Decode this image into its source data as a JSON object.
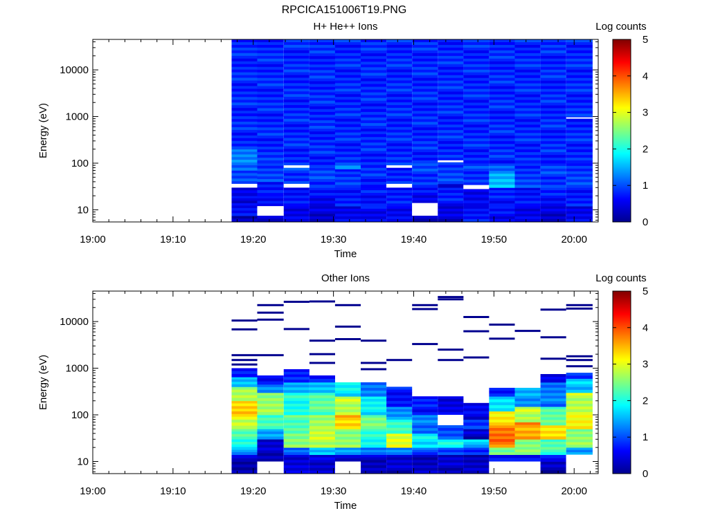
{
  "figure_title": "RPCICA151006T19.PNG",
  "chart_data": [
    {
      "type": "heatmap",
      "title": "H+ He++ Ions",
      "xlabel": "Time",
      "ylabel": "Energy (eV)",
      "x_ticks": [
        "19:00",
        "19:10",
        "19:20",
        "19:30",
        "19:40",
        "19:50",
        "20:00"
      ],
      "y_tick_labels": [
        "10",
        "100",
        "1000",
        "10000"
      ],
      "y_scale": "log",
      "ylim": [
        5.5,
        45000
      ],
      "xlim_minutes": [
        0,
        63
      ],
      "data_start_minutes": 17.3,
      "data_end_minutes": 62.3,
      "colorbar": {
        "label": "Log counts",
        "range": [
          0,
          5
        ],
        "ticks": [
          "0",
          "1",
          "2",
          "3",
          "4",
          "5"
        ]
      },
      "columns": [
        {
          "t0": 17.3,
          "t1": 20.5,
          "bins": [
            [
              5.6,
              7.5,
              0.3
            ],
            [
              7.5,
              14,
              0.7
            ],
            [
              14,
              20,
              0.5
            ],
            [
              20,
              30,
              0.4
            ],
            [
              30,
              36,
              -1
            ],
            [
              36,
              70,
              0.9
            ],
            [
              70,
              200,
              1.2
            ],
            [
              200,
              45000,
              0.8
            ]
          ]
        },
        {
          "t0": 20.5,
          "t1": 23.8,
          "bins": [
            [
              5.6,
              7.5,
              0.3
            ],
            [
              7.5,
              12,
              -1
            ],
            [
              12,
              20,
              0.6
            ],
            [
              20,
              40,
              0.7
            ],
            [
              40,
              100,
              0.9
            ],
            [
              100,
              45000,
              0.8
            ]
          ]
        },
        {
          "t0": 23.8,
          "t1": 27.0,
          "bins": [
            [
              5.6,
              12,
              0.5
            ],
            [
              12,
              30,
              0.7
            ],
            [
              30,
              36,
              -1
            ],
            [
              36,
              80,
              0.9
            ],
            [
              80,
              90,
              -1
            ],
            [
              90,
              45000,
              0.8
            ]
          ]
        },
        {
          "t0": 27.0,
          "t1": 30.2,
          "bins": [
            [
              5.6,
              12,
              0.4
            ],
            [
              12,
              30,
              0.6
            ],
            [
              30,
              80,
              0.9
            ],
            [
              80,
              45000,
              0.8
            ]
          ]
        },
        {
          "t0": 30.2,
          "t1": 33.4,
          "bins": [
            [
              5.6,
              12,
              0.5
            ],
            [
              12,
              30,
              0.7
            ],
            [
              30,
              75,
              0.9
            ],
            [
              75,
              90,
              1.4
            ],
            [
              90,
              45000,
              0.8
            ]
          ]
        },
        {
          "t0": 33.4,
          "t1": 36.6,
          "bins": [
            [
              5.6,
              12,
              0.6
            ],
            [
              12,
              30,
              0.7
            ],
            [
              30,
              80,
              0.8
            ],
            [
              80,
              45000,
              0.8
            ]
          ]
        },
        {
          "t0": 36.6,
          "t1": 39.8,
          "bins": [
            [
              5.6,
              12,
              0.5
            ],
            [
              12,
              30,
              0.7
            ],
            [
              30,
              36,
              -1
            ],
            [
              36,
              80,
              0.8
            ],
            [
              80,
              90,
              -1
            ],
            [
              90,
              45000,
              0.8
            ]
          ]
        },
        {
          "t0": 39.8,
          "t1": 43.0,
          "bins": [
            [
              5.6,
              7.5,
              0.4
            ],
            [
              7.5,
              14,
              -1
            ],
            [
              14,
              30,
              0.6
            ],
            [
              30,
              100,
              0.9
            ],
            [
              100,
              45000,
              0.8
            ]
          ]
        },
        {
          "t0": 43.0,
          "t1": 46.2,
          "bins": [
            [
              5.6,
              12,
              0.4
            ],
            [
              12,
              30,
              0.7
            ],
            [
              30,
              36,
              0.5
            ],
            [
              36,
              105,
              0.9
            ],
            [
              105,
              115,
              -1
            ],
            [
              115,
              45000,
              0.8
            ]
          ]
        },
        {
          "t0": 46.2,
          "t1": 49.4,
          "bins": [
            [
              5.6,
              12,
              0.7
            ],
            [
              12,
              28,
              0.6
            ],
            [
              28,
              34,
              -1
            ],
            [
              34,
              100,
              0.9
            ],
            [
              100,
              45000,
              0.8
            ]
          ]
        },
        {
          "t0": 49.4,
          "t1": 52.6,
          "bins": [
            [
              5.6,
              12,
              0.6
            ],
            [
              12,
              30,
              0.7
            ],
            [
              30,
              60,
              1.5
            ],
            [
              60,
              100,
              1.1
            ],
            [
              100,
              45000,
              0.8
            ]
          ]
        },
        {
          "t0": 52.6,
          "t1": 55.8,
          "bins": [
            [
              5.6,
              12,
              0.5
            ],
            [
              12,
              30,
              0.7
            ],
            [
              30,
              100,
              0.9
            ],
            [
              100,
              45000,
              0.8
            ]
          ]
        },
        {
          "t0": 55.8,
          "t1": 59.0,
          "bins": [
            [
              5.6,
              12,
              0.4
            ],
            [
              12,
              30,
              0.7
            ],
            [
              30,
              100,
              0.9
            ],
            [
              100,
              45000,
              0.8
            ]
          ]
        },
        {
          "t0": 59.0,
          "t1": 62.3,
          "bins": [
            [
              5.6,
              12,
              0.5
            ],
            [
              12,
              30,
              0.7
            ],
            [
              30,
              100,
              0.9
            ],
            [
              900,
              960,
              -1
            ],
            [
              100,
              45000,
              0.8
            ]
          ]
        }
      ]
    },
    {
      "type": "heatmap",
      "title": "Other Ions",
      "xlabel": "Time",
      "ylabel": "Energy (eV)",
      "x_ticks": [
        "19:00",
        "19:10",
        "19:20",
        "19:30",
        "19:40",
        "19:50",
        "20:00"
      ],
      "y_tick_labels": [
        "10",
        "100",
        "1000",
        "10000"
      ],
      "y_scale": "log",
      "ylim": [
        5.5,
        45000
      ],
      "xlim_minutes": [
        0,
        63
      ],
      "data_start_minutes": 17.3,
      "data_end_minutes": 62.3,
      "colorbar": {
        "label": "Log counts",
        "range": [
          0,
          5
        ],
        "ticks": [
          "0",
          "1",
          "2",
          "3",
          "4",
          "5"
        ]
      },
      "columns": [
        {
          "t0": 17.3,
          "t1": 20.5,
          "bins": [
            [
              5.6,
              10,
              0.2
            ],
            [
              10,
              14,
              0.5
            ],
            [
              14,
              18,
              1.2
            ],
            [
              18,
              30,
              1.9
            ],
            [
              30,
              50,
              2.2
            ],
            [
              50,
              80,
              2.8
            ],
            [
              80,
              200,
              3.3
            ],
            [
              200,
              400,
              2.7
            ],
            [
              400,
              650,
              1.6
            ],
            [
              650,
              1000,
              0.8
            ]
          ],
          "lines": [
            1200,
            1500,
            1900,
            6800,
            10500
          ]
        },
        {
          "t0": 20.5,
          "t1": 23.8,
          "bins": [
            [
              5.6,
              10,
              -1
            ],
            [
              10,
              30,
              0.3
            ],
            [
              30,
              50,
              1.4
            ],
            [
              50,
              100,
              2.2
            ],
            [
              100,
              300,
              2.6
            ],
            [
              300,
              450,
              1.4
            ],
            [
              450,
              700,
              0.7
            ]
          ],
          "lines": [
            1900,
            11000,
            15500,
            22500
          ]
        },
        {
          "t0": 23.8,
          "t1": 27.0,
          "bins": [
            [
              5.6,
              14,
              0.4
            ],
            [
              14,
              20,
              1.2
            ],
            [
              20,
              40,
              2.6
            ],
            [
              40,
              100,
              2.3
            ],
            [
              100,
              300,
              2.0
            ],
            [
              300,
              500,
              1.4
            ],
            [
              500,
              950,
              0.7
            ]
          ],
          "lines": [
            6900,
            26500
          ]
        },
        {
          "t0": 27.0,
          "t1": 30.2,
          "bins": [
            [
              5.6,
              14,
              0.4
            ],
            [
              14,
              20,
              1.5
            ],
            [
              20,
              50,
              2.8
            ],
            [
              50,
              100,
              2.6
            ],
            [
              100,
              300,
              2.3
            ],
            [
              300,
              500,
              1.6
            ],
            [
              500,
              700,
              0.8
            ]
          ],
          "lines": [
            1300,
            2000,
            3900,
            27000
          ]
        },
        {
          "t0": 30.2,
          "t1": 33.4,
          "bins": [
            [
              5.6,
              10,
              -1
            ],
            [
              10,
              14,
              0.4
            ],
            [
              14,
              20,
              1.5
            ],
            [
              20,
              50,
              2.6
            ],
            [
              50,
              100,
              3.4
            ],
            [
              100,
              250,
              2.8
            ],
            [
              250,
              500,
              1.8
            ]
          ],
          "lines": [
            4200,
            7800,
            22500
          ]
        },
        {
          "t0": 33.4,
          "t1": 36.6,
          "bins": [
            [
              5.6,
              14,
              0.3
            ],
            [
              14,
              20,
              1.1
            ],
            [
              20,
              50,
              2.0
            ],
            [
              50,
              100,
              2.4
            ],
            [
              100,
              250,
              1.8
            ],
            [
              250,
              500,
              1.2
            ]
          ],
          "lines": [
            950,
            1300,
            3900
          ]
        },
        {
          "t0": 36.6,
          "t1": 39.8,
          "bins": [
            [
              5.6,
              14,
              0.3
            ],
            [
              14,
              20,
              1.3
            ],
            [
              20,
              40,
              3.0
            ],
            [
              40,
              80,
              2.2
            ],
            [
              80,
              150,
              1.4
            ],
            [
              150,
              400,
              0.7
            ]
          ],
          "lines": [
            1500
          ]
        },
        {
          "t0": 39.8,
          "t1": 43.0,
          "bins": [
            [
              5.6,
              14,
              0.3
            ],
            [
              14,
              20,
              1.0
            ],
            [
              20,
              40,
              1.8
            ],
            [
              40,
              100,
              1.2
            ],
            [
              100,
              250,
              0.7
            ]
          ],
          "lines": [
            3300,
            18500,
            22500
          ]
        },
        {
          "t0": 43.0,
          "t1": 46.2,
          "bins": [
            [
              5.6,
              14,
              0.3
            ],
            [
              14,
              20,
              0.9
            ],
            [
              20,
              30,
              2.0
            ],
            [
              30,
              60,
              1.0
            ],
            [
              60,
              100,
              -1
            ],
            [
              100,
              250,
              0.5
            ]
          ],
          "lines": [
            1500,
            2500,
            30000,
            33500
          ]
        },
        {
          "t0": 46.2,
          "t1": 49.4,
          "bins": [
            [
              5.6,
              14,
              0.3
            ],
            [
              14,
              20,
              0.9
            ],
            [
              20,
              30,
              1.6
            ],
            [
              30,
              50,
              0.3
            ],
            [
              50,
              80,
              0.8
            ],
            [
              80,
              180,
              0.5
            ]
          ],
          "lines": [
            1700,
            6200,
            12500
          ]
        },
        {
          "t0": 49.4,
          "t1": 52.6,
          "bins": [
            [
              5.6,
              10,
              -1
            ],
            [
              10,
              14,
              0.6
            ],
            [
              14,
              20,
              2.4
            ],
            [
              20,
              60,
              3.8
            ],
            [
              60,
              120,
              3.2
            ],
            [
              120,
              250,
              1.8
            ],
            [
              250,
              380,
              0.8
            ]
          ],
          "lines": [
            4300,
            8600
          ]
        },
        {
          "t0": 52.6,
          "t1": 55.8,
          "bins": [
            [
              5.6,
              10,
              -1
            ],
            [
              10,
              14,
              0.7
            ],
            [
              14,
              30,
              2.6
            ],
            [
              30,
              70,
              3.6
            ],
            [
              70,
              150,
              2.8
            ],
            [
              150,
              380,
              1.4
            ]
          ],
          "lines": [
            6300
          ]
        },
        {
          "t0": 55.8,
          "t1": 59.0,
          "bins": [
            [
              5.6,
              10,
              0.2
            ],
            [
              10,
              14,
              0.6
            ],
            [
              14,
              30,
              2.2
            ],
            [
              30,
              60,
              3.2
            ],
            [
              60,
              150,
              2.3
            ],
            [
              150,
              500,
              1.2
            ],
            [
              500,
              750,
              0.6
            ]
          ],
          "lines": [
            1600,
            4600,
            18000
          ]
        },
        {
          "t0": 59.0,
          "t1": 62.3,
          "bins": [
            [
              5.6,
              14,
              -1
            ],
            [
              14,
              20,
              1.4
            ],
            [
              20,
              50,
              2.6
            ],
            [
              50,
              100,
              3.2
            ],
            [
              100,
              300,
              2.8
            ],
            [
              300,
              600,
              1.6
            ],
            [
              600,
              800,
              0.8
            ]
          ],
          "lines": [
            1100,
            1500,
            1800,
            19000,
            22500
          ]
        }
      ]
    }
  ]
}
